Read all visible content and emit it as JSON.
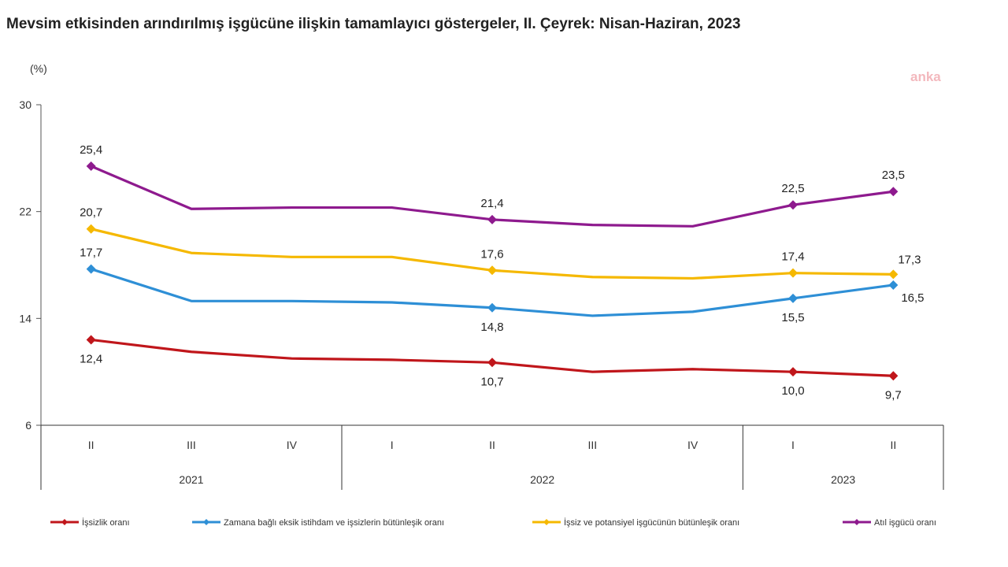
{
  "title": "Mevsim etkisinden arındırılmış işgücüne ilişkin tamamlayıcı göstergeler, II. Çeyrek: Nisan-Haziran, 2023",
  "watermark": "anka",
  "chart_data": {
    "type": "line",
    "title": "Mevsim etkisinden arındırılmış işgücüne ilişkin tamamlayıcı göstergeler, II. Çeyrek: Nisan-Haziran, 2023",
    "unit_label": "(%)",
    "xlabel": "",
    "ylabel": "(%)",
    "ylim": [
      6,
      30
    ],
    "yticks": [
      6,
      14,
      22,
      30
    ],
    "grid": false,
    "legend_position": "bottom",
    "categories": [
      "II",
      "III",
      "IV",
      "I",
      "II",
      "III",
      "IV",
      "I",
      "II"
    ],
    "year_groups": [
      {
        "label": "2021",
        "start": 0,
        "end": 2
      },
      {
        "label": "2022",
        "start": 3,
        "end": 6
      },
      {
        "label": "2023",
        "start": 7,
        "end": 8
      }
    ],
    "series": [
      {
        "name": "İşsizlik oranı",
        "color": "#c0161b",
        "values": [
          12.4,
          11.5,
          11.0,
          10.9,
          10.7,
          10.0,
          10.2,
          10.0,
          9.7
        ],
        "labels": [
          {
            "index": 0,
            "text": "12,4",
            "pos": "below"
          },
          {
            "index": 4,
            "text": "10,7",
            "pos": "below"
          },
          {
            "index": 7,
            "text": "10,0",
            "pos": "below"
          },
          {
            "index": 8,
            "text": "9,7",
            "pos": "below"
          }
        ]
      },
      {
        "name": "Zamana bağlı eksik istihdam ve işsizlerin bütünleşik oranı",
        "color": "#2e8fd6",
        "values": [
          17.7,
          15.3,
          15.3,
          15.2,
          14.8,
          14.2,
          14.5,
          15.5,
          16.5
        ],
        "labels": [
          {
            "index": 0,
            "text": "17,7",
            "pos": "above"
          },
          {
            "index": 4,
            "text": "14,8",
            "pos": "below"
          },
          {
            "index": 7,
            "text": "15,5",
            "pos": "below"
          },
          {
            "index": 8,
            "text": "16,5",
            "pos": "right"
          }
        ]
      },
      {
        "name": "İşsiz ve potansiyel işgücünün bütünleşik oranı",
        "color": "#f5b800",
        "values": [
          20.7,
          18.9,
          18.6,
          18.6,
          17.6,
          17.1,
          17.0,
          17.4,
          17.3
        ],
        "labels": [
          {
            "index": 0,
            "text": "20,7",
            "pos": "above"
          },
          {
            "index": 4,
            "text": "17,6",
            "pos": "above"
          },
          {
            "index": 7,
            "text": "17,4",
            "pos": "above"
          },
          {
            "index": 8,
            "text": "17,3",
            "pos": "above-right"
          }
        ]
      },
      {
        "name": "Atıl işgücü oranı",
        "color": "#8e1a8e",
        "values": [
          25.4,
          22.2,
          22.3,
          22.3,
          21.4,
          21.0,
          20.9,
          22.5,
          23.5
        ],
        "labels": [
          {
            "index": 0,
            "text": "25,4",
            "pos": "above"
          },
          {
            "index": 4,
            "text": "21,4",
            "pos": "above"
          },
          {
            "index": 7,
            "text": "22,5",
            "pos": "above"
          },
          {
            "index": 8,
            "text": "23,5",
            "pos": "above"
          }
        ]
      }
    ]
  }
}
